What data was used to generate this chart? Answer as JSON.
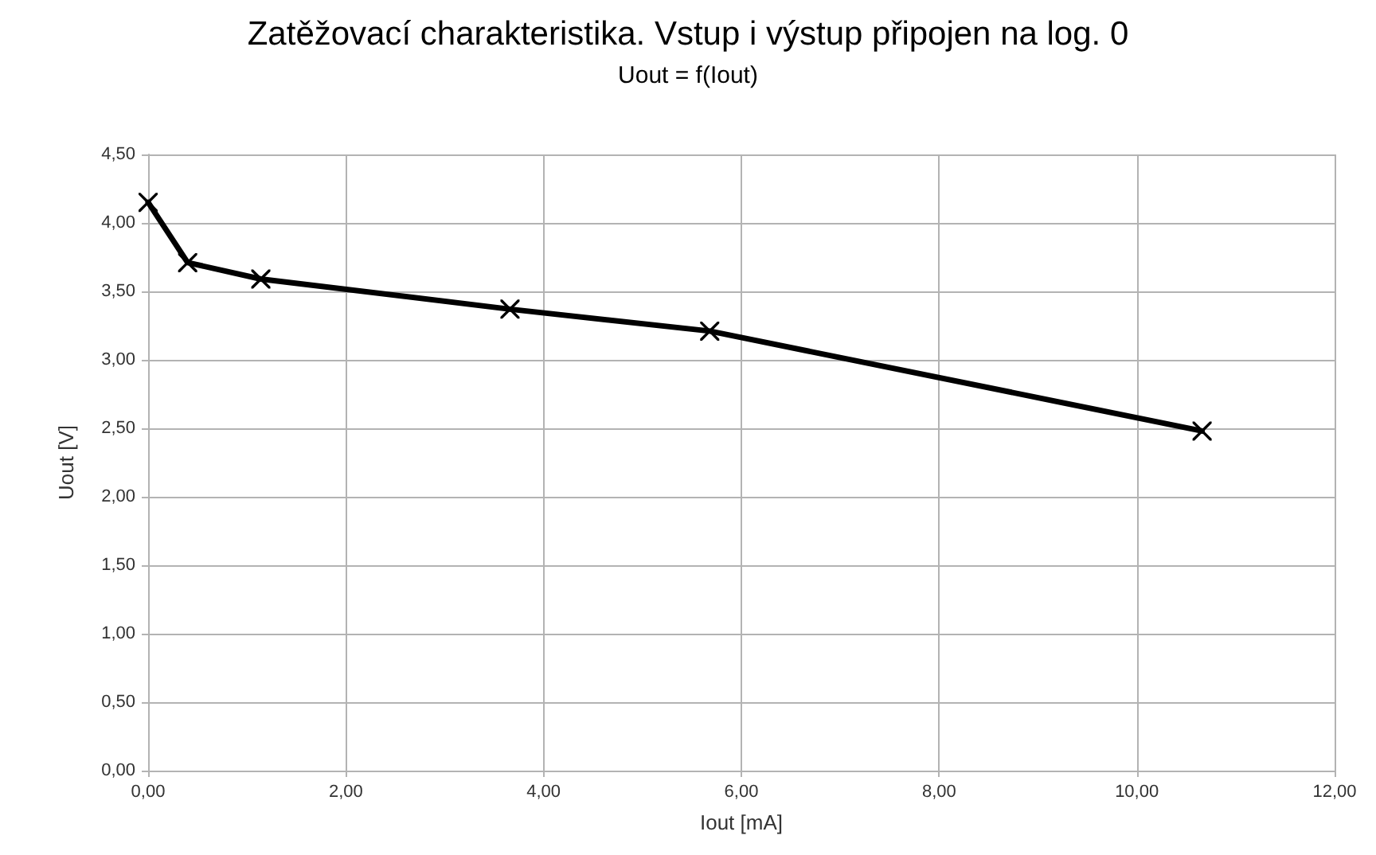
{
  "chart_data": {
    "type": "line",
    "title": "Zatěžovací charakteristika. Vstup i výstup připojen na log. 0",
    "subtitle": "Uout = f(Iout)",
    "xlabel": "Iout [mA]",
    "ylabel": "Uout [V]",
    "x": [
      0,
      0.4,
      1.14,
      3.66,
      5.68,
      10.66
    ],
    "series": [
      {
        "color": "#000000",
        "values": [
          4.15,
          3.71,
          3.59,
          3.37,
          3.21,
          2.48
        ]
      }
    ],
    "xlim": [
      0,
      12
    ],
    "xticks": [
      {
        "value": 0,
        "label": "0,00"
      },
      {
        "value": 2,
        "label": "2,00"
      },
      {
        "value": 4,
        "label": "4,00"
      },
      {
        "value": 6,
        "label": "6,00"
      },
      {
        "value": 8,
        "label": "8,00"
      },
      {
        "value": 10,
        "label": "10,00"
      },
      {
        "value": 12,
        "label": "12,00"
      }
    ],
    "ylim": [
      0,
      4.5
    ],
    "yticks": [
      {
        "value": 0,
        "label": "0,00"
      },
      {
        "value": 0.5,
        "label": "0,50"
      },
      {
        "value": 1,
        "label": "1,00"
      },
      {
        "value": 1.5,
        "label": "1,50"
      },
      {
        "value": 2,
        "label": "2,00"
      },
      {
        "value": 2.5,
        "label": "2,50"
      },
      {
        "value": 3,
        "label": "3,00"
      },
      {
        "value": 3.5,
        "label": "3,50"
      },
      {
        "value": 4,
        "label": "4,00"
      },
      {
        "value": 4.5,
        "label": "4,50"
      }
    ],
    "grid": true,
    "marker": "cross",
    "line_style": "solid"
  }
}
